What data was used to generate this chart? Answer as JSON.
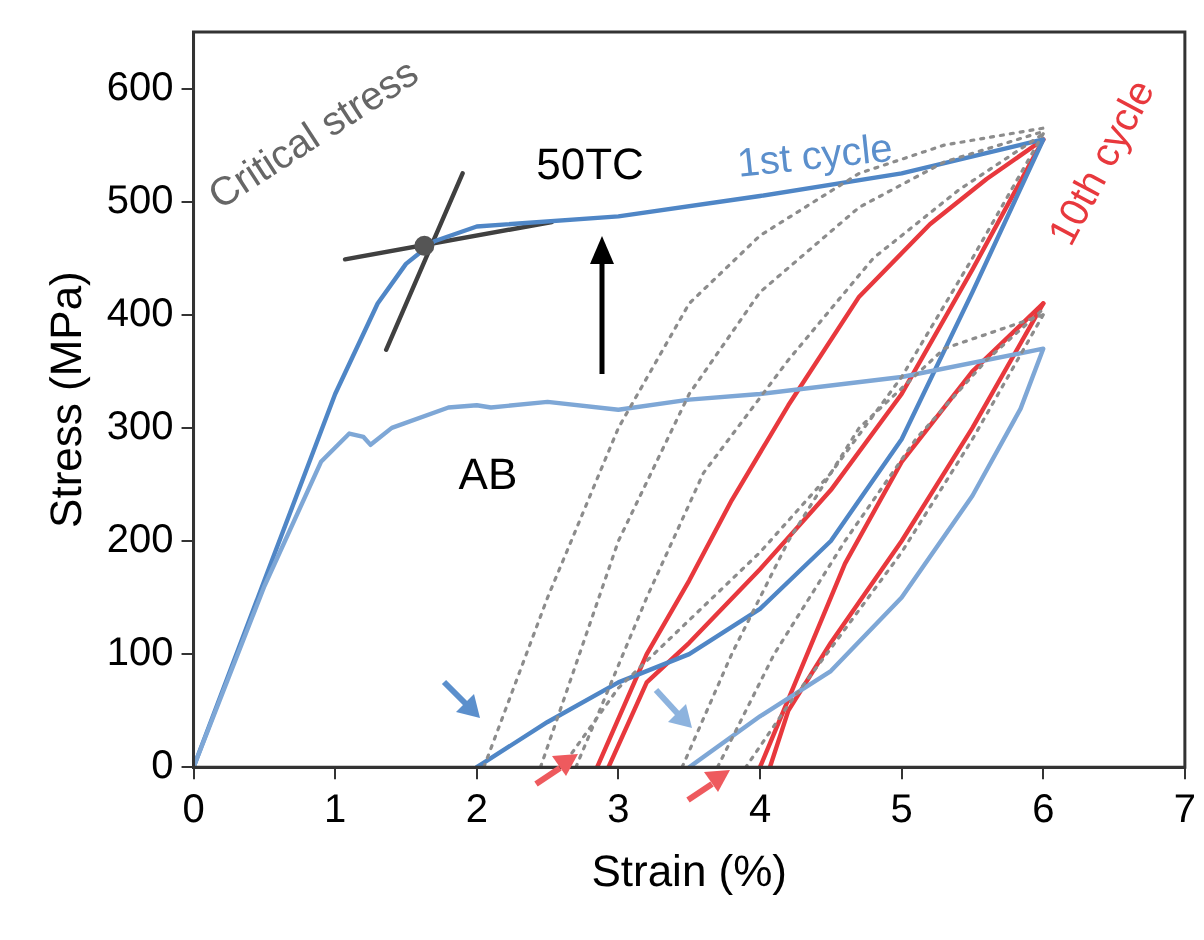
{
  "chart_data": {
    "type": "line",
    "xlabel": "Strain (%)",
    "ylabel": "Stress (MPa)",
    "xlim": [
      0,
      7
    ],
    "xticks": [
      0,
      1,
      2,
      3,
      4,
      5,
      6,
      7
    ],
    "ylim": [
      0,
      650
    ],
    "yticks": [
      0,
      100,
      200,
      300,
      400,
      500,
      600
    ],
    "grid": false,
    "legend": false,
    "marker": "none",
    "line_style": "solid",
    "series": [
      {
        "color": "#8c8c8c",
        "line_style": "dotted",
        "x": [
          2.05,
          2.5,
          3.0,
          3.5,
          4.0,
          4.7,
          5.3,
          6.0
        ],
        "values": [
          0,
          150,
          300,
          410,
          470,
          525,
          550,
          565
        ]
      },
      {
        "color": "#8c8c8c",
        "line_style": "dotted",
        "x": [
          2.45,
          3.0,
          3.5,
          4.0,
          4.7,
          5.3,
          6.0
        ],
        "values": [
          0,
          200,
          330,
          420,
          495,
          535,
          562
        ]
      },
      {
        "color": "#8c8c8c",
        "line_style": "dotted",
        "x": [
          2.7,
          3.2,
          3.6,
          4.2,
          4.8,
          5.4,
          6.0
        ],
        "values": [
          0,
          150,
          260,
          360,
          450,
          510,
          560
        ]
      },
      {
        "color": "#8c8c8c",
        "line_style": "dotted",
        "x": [
          6.0,
          5.5,
          5.0,
          4.5,
          4.0,
          3.5,
          3.0,
          2.6
        ],
        "values": [
          560,
          450,
          345,
          260,
          190,
          130,
          70,
          0
        ]
      },
      {
        "color": "#8c8c8c",
        "line_style": "dotted",
        "x": [
          3.45,
          3.8,
          4.2,
          4.7,
          5.3,
          6.0
        ],
        "values": [
          0,
          100,
          200,
          300,
          370,
          400
        ]
      },
      {
        "color": "#8c8c8c",
        "line_style": "dotted",
        "x": [
          3.7,
          4.1,
          4.6,
          5.1,
          5.6,
          6.0
        ],
        "values": [
          0,
          100,
          200,
          290,
          360,
          405
        ]
      },
      {
        "color": "#8c8c8c",
        "line_style": "dotted",
        "x": [
          6.0,
          5.5,
          5.0,
          4.5,
          4.2,
          3.9
        ],
        "values": [
          400,
          290,
          190,
          105,
          55,
          0
        ]
      },
      {
        "color": "#7ea7d6",
        "x": [
          0,
          0.5,
          0.9,
          1.1,
          1.2,
          1.25,
          1.4,
          1.8,
          2.0,
          2.1,
          2.5,
          3.0,
          3.5,
          4.0,
          5.0,
          6.0,
          6.0,
          5.84,
          5.5,
          5.0,
          4.5,
          4.0,
          3.5
        ],
        "values": [
          0,
          160,
          270,
          295,
          292,
          285,
          300,
          318,
          320,
          318,
          323,
          316,
          325,
          330,
          345,
          370,
          370,
          317,
          240,
          150,
          85,
          45,
          0
        ]
      },
      {
        "color": "#4f86c6",
        "x": [
          0,
          0.5,
          1.0,
          1.3,
          1.5,
          1.7,
          2.0,
          3.0,
          4.0,
          5.0,
          6.0,
          6.0,
          5.5,
          5.0,
          4.5,
          4.0,
          3.5,
          3.0,
          2.5,
          2.0
        ],
        "values": [
          0,
          165,
          330,
          410,
          445,
          465,
          478,
          487,
          505,
          525,
          555,
          555,
          420,
          290,
          200,
          140,
          100,
          75,
          40,
          0
        ]
      },
      {
        "color": "#e8383d",
        "x": [
          2.85,
          3.2,
          3.5,
          3.8,
          4.2,
          4.7,
          5.2,
          5.6,
          6.0
        ],
        "values": [
          0,
          100,
          165,
          236,
          320,
          416,
          480,
          520,
          555
        ]
      },
      {
        "color": "#e8383d",
        "x": [
          6.0,
          5.5,
          5.0,
          4.5,
          4.0,
          3.5,
          3.2,
          2.93
        ],
        "values": [
          555,
          440,
          330,
          245,
          175,
          110,
          75,
          0
        ]
      },
      {
        "color": "#e8383d",
        "x": [
          4.0,
          4.3,
          4.6,
          5.0,
          5.5,
          6.0
        ],
        "values": [
          0,
          90,
          180,
          270,
          350,
          410
        ]
      },
      {
        "color": "#e8383d",
        "x": [
          6.0,
          5.5,
          5.0,
          4.5,
          4.2,
          4.07
        ],
        "values": [
          410,
          300,
          200,
          110,
          50,
          0
        ]
      },
      {
        "color": "#404040",
        "x": [
          1.36,
          1.9
        ],
        "values": [
          369,
          525
        ]
      },
      {
        "color": "#404040",
        "x": [
          1.07,
          2.53
        ],
        "values": [
          449,
          482
        ]
      },
      {
        "type": "scatter",
        "color": "#555555",
        "marker": "circle",
        "x": [
          1.63
        ],
        "values": [
          461
        ]
      }
    ],
    "annotations": [
      {
        "text": "Critical stress",
        "x": 1.63,
        "y": 461
      },
      "50TC",
      "AB",
      "1st cycle",
      {
        "text": "10th cycle",
        "x": 6.0,
        "y": 410
      }
    ]
  }
}
